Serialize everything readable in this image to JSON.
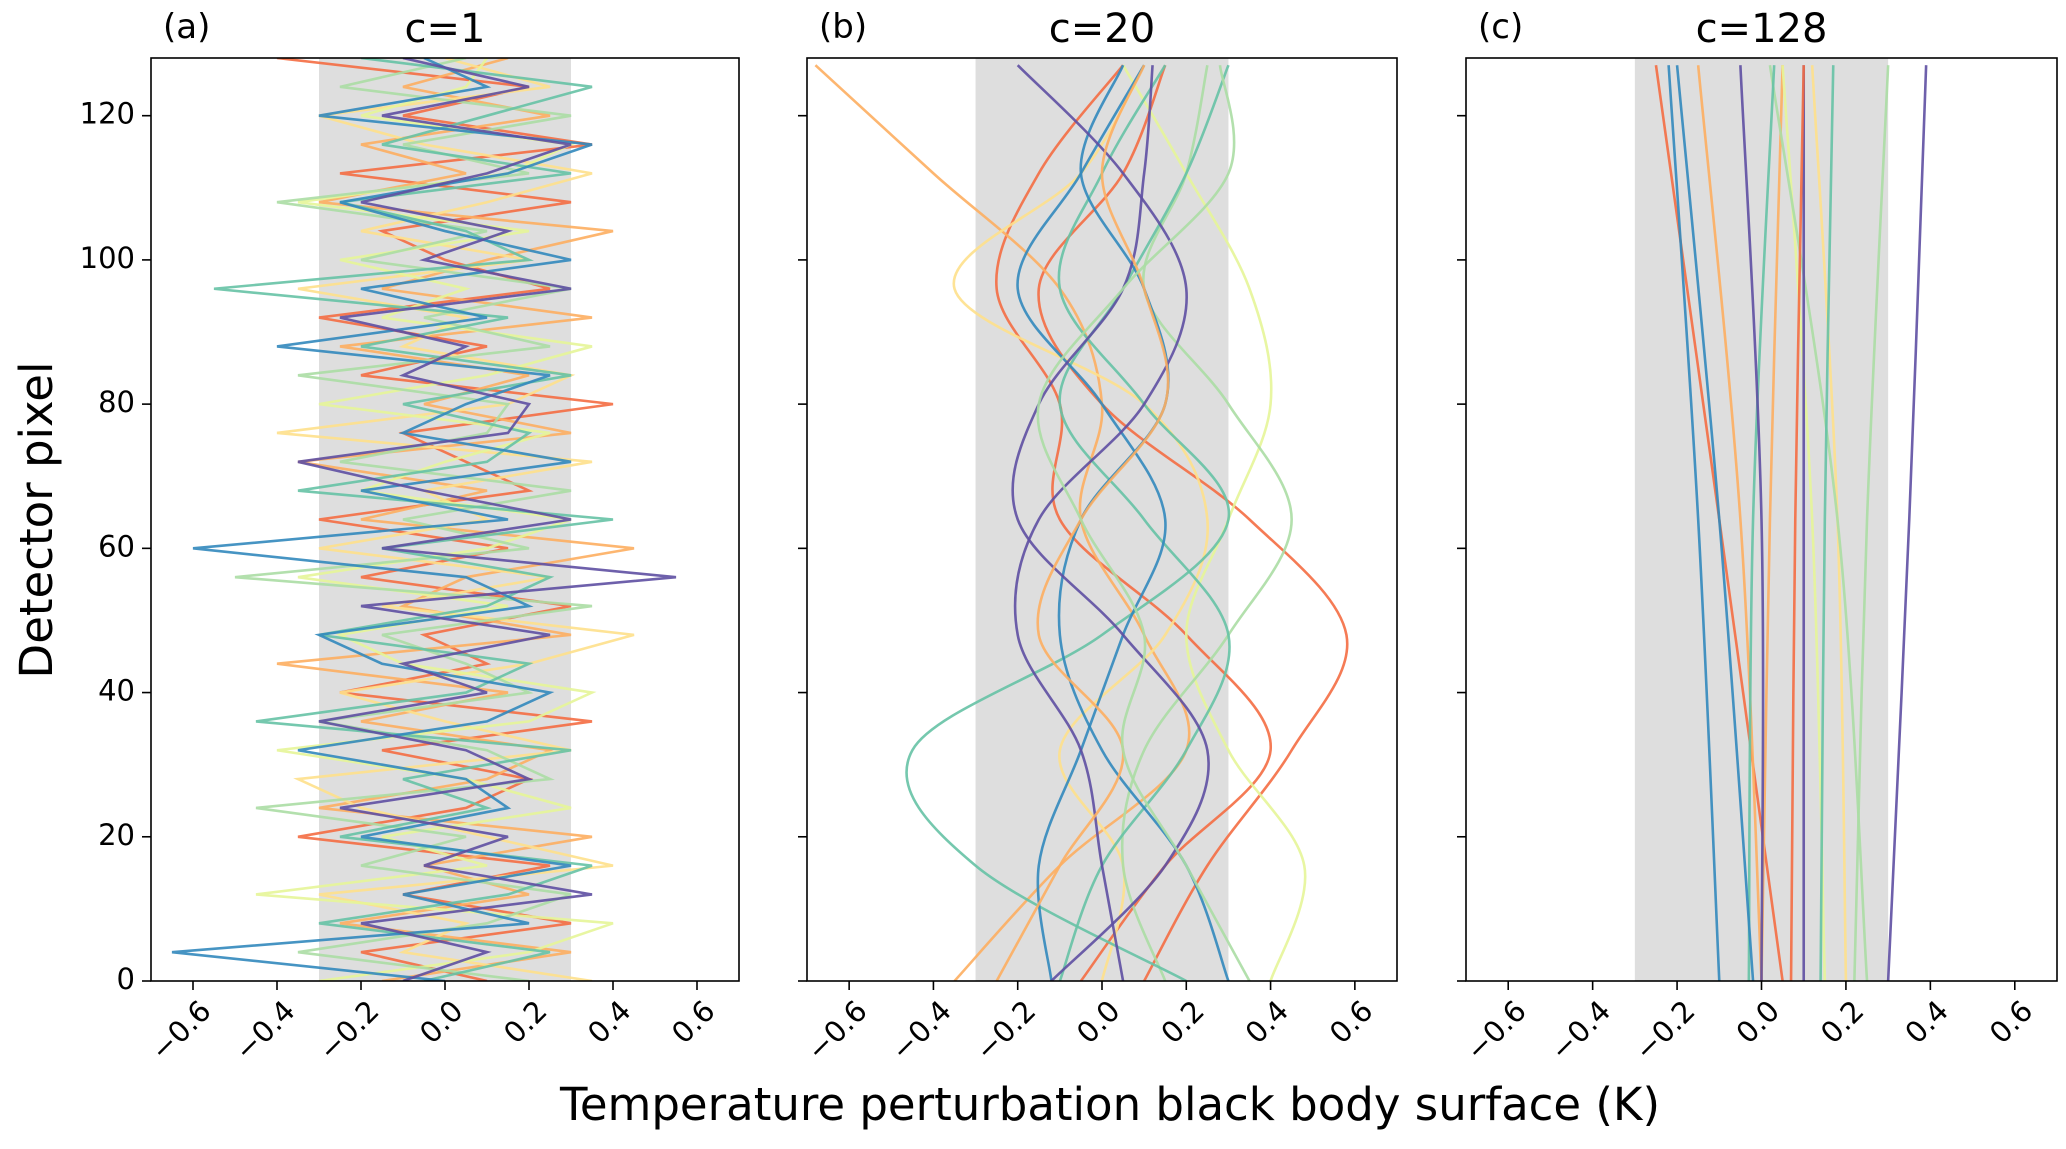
{
  "chart_data": [
    {
      "type": "line",
      "label": "(a)",
      "title": "c=1",
      "ylabel": "Detector pixel",
      "xlabel": "Temperature perturbation black body surface (K)",
      "xlim": [
        -0.7,
        0.7
      ],
      "xticks": [
        {
          "value": -0.6,
          "label": "−0.6"
        },
        {
          "value": -0.4,
          "label": "−0.4"
        },
        {
          "value": -0.2,
          "label": "−0.2"
        },
        {
          "value": 0,
          "label": "0.0"
        },
        0.2,
        0.4,
        0.6
      ],
      "ylim": [
        0,
        128
      ],
      "yticks": [
        0,
        20,
        40,
        60,
        80,
        100,
        120
      ],
      "show_ytick_labels": true,
      "shade_x": [
        -0.3,
        0.3
      ],
      "shade_color": "#dedede",
      "y": [
        0,
        4,
        8,
        12,
        16,
        20,
        24,
        28,
        32,
        36,
        40,
        44,
        48,
        52,
        56,
        60,
        64,
        68,
        72,
        76,
        80,
        84,
        88,
        92,
        96,
        100,
        104,
        108,
        112,
        116,
        120,
        124,
        128
      ],
      "series": [
        {
          "color": "#f46d43",
          "values": [
            0.1,
            -0.2,
            0.3,
            -0.1,
            0.25,
            -0.35,
            0.05,
            0.2,
            -0.15,
            0.35,
            -0.25,
            0.1,
            -0.05,
            0.3,
            -0.2,
            0.15,
            -0.3,
            0.2,
            0.05,
            -0.1,
            0.4,
            -0.2,
            0.1,
            -0.3,
            0.25,
            0.0,
            -0.15,
            0.3,
            -0.25,
            0.35,
            -0.1,
            0.2,
            -0.4
          ]
        },
        {
          "color": "#fdae61",
          "values": [
            -0.15,
            0.3,
            -0.25,
            0.2,
            -0.05,
            0.35,
            -0.3,
            0.1,
            0.25,
            -0.2,
            0.15,
            -0.4,
            0.3,
            -0.1,
            0.05,
            0.45,
            -0.2,
            0.1,
            -0.35,
            0.3,
            -0.05,
            0.2,
            -0.25,
            0.35,
            -0.15,
            0.1,
            0.4,
            -0.3,
            0.05,
            -0.2,
            0.25,
            -0.1,
            0.15
          ]
        },
        {
          "color": "#fee08b",
          "values": [
            0.35,
            -0.1,
            0.05,
            -0.3,
            0.4,
            0.1,
            -0.2,
            -0.35,
            0.3,
            0.0,
            -0.25,
            0.2,
            0.45,
            -0.15,
            0.25,
            -0.3,
            0.1,
            -0.05,
            0.35,
            -0.4,
            0.15,
            0.3,
            -0.1,
            0.05,
            -0.35,
            0.2,
            -0.2,
            0.1,
            0.35,
            -0.05,
            -0.3,
            0.25,
            0.0
          ]
        },
        {
          "color": "#e6f598",
          "values": [
            -0.3,
            0.2,
            0.4,
            -0.45,
            0.1,
            -0.15,
            0.3,
            0.05,
            -0.4,
            0.2,
            0.35,
            -0.1,
            -0.25,
            0.15,
            -0.35,
            0.1,
            0.3,
            -0.2,
            0.0,
            0.25,
            -0.3,
            0.1,
            0.35,
            -0.15,
            0.05,
            -0.25,
            0.2,
            -0.35,
            0.15,
            0.3,
            -0.2,
            0.05,
            0.1
          ]
        },
        {
          "color": "#abdda4",
          "values": [
            0.2,
            -0.35,
            0.1,
            0.3,
            -0.2,
            0.05,
            -0.45,
            0.25,
            0.1,
            -0.3,
            0.2,
            0.05,
            -0.15,
            0.35,
            -0.5,
            0.2,
            -0.1,
            0.3,
            -0.25,
            0.1,
            0.15,
            -0.35,
            0.25,
            -0.05,
            0.3,
            -0.2,
            0.1,
            -0.4,
            0.2,
            -0.1,
            0.3,
            -0.25,
            0.05
          ]
        },
        {
          "color": "#66c2a5",
          "values": [
            -0.05,
            0.25,
            -0.3,
            0.15,
            0.35,
            -0.25,
            0.1,
            -0.1,
            0.3,
            -0.45,
            0.05,
            0.2,
            -0.3,
            0.1,
            0.25,
            -0.15,
            0.4,
            -0.35,
            0.1,
            0.2,
            -0.1,
            0.3,
            -0.2,
            0.15,
            -0.55,
            0.2,
            0.05,
            -0.25,
            0.3,
            -0.15,
            0.1,
            0.35,
            -0.2
          ]
        },
        {
          "color": "#3288bd",
          "values": [
            0.0,
            -0.65,
            0.2,
            -0.1,
            0.3,
            -0.2,
            0.15,
            0.05,
            -0.35,
            0.1,
            0.25,
            -0.15,
            -0.3,
            0.2,
            0.05,
            -0.6,
            0.15,
            -0.2,
            0.3,
            -0.1,
            0.05,
            0.25,
            -0.4,
            0.1,
            -0.2,
            0.3,
            0.0,
            -0.25,
            0.15,
            0.35,
            -0.3,
            0.1,
            -0.05
          ]
        },
        {
          "color": "#5e4fa2",
          "values": [
            -0.1,
            0.1,
            -0.2,
            0.35,
            -0.05,
            0.15,
            -0.25,
            0.2,
            0.05,
            -0.3,
            0.1,
            -0.1,
            0.25,
            -0.2,
            0.55,
            -0.15,
            0.3,
            -0.05,
            -0.35,
            0.15,
            0.2,
            -0.1,
            0.05,
            -0.25,
            0.3,
            -0.05,
            0.15,
            -0.2,
            0.1,
            0.3,
            -0.15,
            0.2,
            -0.1
          ]
        }
      ]
    },
    {
      "type": "line",
      "label": "(b)",
      "title": "c=20",
      "xlim": [
        -0.7,
        0.7
      ],
      "xticks": [
        {
          "value": -0.6,
          "label": "−0.6"
        },
        {
          "value": -0.4,
          "label": "−0.4"
        },
        {
          "value": -0.2,
          "label": "−0.2"
        },
        {
          "value": 0,
          "label": "0.0"
        },
        0.2,
        0.4,
        0.6
      ],
      "ylim": [
        0,
        128
      ],
      "yticks": [
        0,
        20,
        40,
        60,
        80,
        100,
        120
      ],
      "show_ytick_labels": false,
      "shade_x": [
        -0.3,
        0.3
      ],
      "shade_color": "#dedede",
      "y": [
        0,
        16,
        32,
        48,
        64,
        80,
        96,
        112,
        127
      ],
      "series": [
        {
          "color": "#f46d43",
          "values": [
            0.1,
            0.25,
            0.45,
            0.58,
            0.35,
            0.0,
            -0.15,
            0.05,
            0.15
          ]
        },
        {
          "color": "#f46d43",
          "values": [
            -0.05,
            0.15,
            0.4,
            0.2,
            -0.1,
            -0.1,
            -0.25,
            -0.15,
            0.05
          ]
        },
        {
          "color": "#fdae61",
          "values": [
            -0.35,
            -0.1,
            0.2,
            0.1,
            -0.05,
            0.0,
            -0.1,
            -0.4,
            -0.68
          ]
        },
        {
          "color": "#fee08b",
          "values": [
            0.0,
            0.05,
            -0.1,
            0.15,
            0.25,
            0.1,
            -0.35,
            -0.05,
            0.1
          ]
        },
        {
          "color": "#e6f598",
          "values": [
            0.4,
            0.48,
            0.3,
            0.2,
            0.3,
            0.4,
            0.35,
            0.2,
            0.05
          ]
        },
        {
          "color": "#abdda4",
          "values": [
            0.15,
            0.05,
            0.1,
            0.3,
            0.45,
            0.3,
            0.1,
            0.2,
            0.25
          ]
        },
        {
          "color": "#66c2a5",
          "values": [
            0.2,
            -0.3,
            -0.45,
            0.0,
            0.3,
            0.1,
            -0.1,
            0.0,
            0.15
          ]
        },
        {
          "color": "#66c2a5",
          "values": [
            -0.1,
            0.0,
            0.2,
            0.3,
            0.1,
            -0.1,
            0.05,
            0.2,
            0.3
          ]
        },
        {
          "color": "#3288bd",
          "values": [
            -0.12,
            -0.15,
            -0.05,
            0.05,
            0.15,
            0.0,
            -0.2,
            -0.05,
            0.1
          ]
        },
        {
          "color": "#3288bd",
          "values": [
            0.3,
            0.2,
            0.0,
            -0.1,
            -0.05,
            0.15,
            0.1,
            -0.05,
            0.05
          ]
        },
        {
          "color": "#5e4fa2",
          "values": [
            -0.12,
            0.15,
            0.25,
            0.05,
            -0.2,
            -0.15,
            0.05,
            0.1,
            0.12
          ]
        },
        {
          "color": "#5e4fa2",
          "values": [
            0.05,
            0.0,
            -0.05,
            -0.2,
            -0.15,
            0.1,
            0.2,
            0.05,
            -0.2
          ]
        },
        {
          "color": "#fdae61",
          "values": [
            -0.25,
            -0.1,
            0.05,
            -0.15,
            -0.05,
            0.15,
            0.1,
            0.0,
            0.1
          ]
        },
        {
          "color": "#abdda4",
          "values": [
            0.35,
            0.2,
            0.05,
            0.1,
            -0.05,
            -0.15,
            0.05,
            0.3,
            0.28
          ]
        }
      ]
    },
    {
      "type": "line",
      "label": "(c)",
      "title": "c=128",
      "xlim": [
        -0.7,
        0.7
      ],
      "xticks": [
        {
          "value": -0.6,
          "label": "−0.6"
        },
        {
          "value": -0.4,
          "label": "−0.4"
        },
        {
          "value": -0.2,
          "label": "−0.2"
        },
        {
          "value": 0,
          "label": "0.0"
        },
        0.2,
        0.4,
        0.6
      ],
      "ylim": [
        0,
        128
      ],
      "yticks": [
        0,
        20,
        40,
        60,
        80,
        100,
        120
      ],
      "show_ytick_labels": false,
      "shade_x": [
        -0.3,
        0.3
      ],
      "shade_color": "#dedede",
      "y": [
        0,
        64,
        127
      ],
      "series": [
        {
          "color": "#f46d43",
          "values": [
            0.05,
            -0.1,
            -0.25
          ]
        },
        {
          "color": "#fdae61",
          "values": [
            0.0,
            -0.05,
            -0.15
          ]
        },
        {
          "color": "#fdae61",
          "values": [
            0.0,
            0.02,
            0.05
          ]
        },
        {
          "color": "#fee08b",
          "values": [
            0.2,
            0.18,
            0.12
          ]
        },
        {
          "color": "#e6f598",
          "values": [
            0.15,
            0.12,
            0.05
          ]
        },
        {
          "color": "#abdda4",
          "values": [
            0.22,
            0.25,
            0.3
          ]
        },
        {
          "color": "#abdda4",
          "values": [
            0.25,
            0.18,
            0.02
          ]
        },
        {
          "color": "#66c2a5",
          "values": [
            -0.03,
            -0.02,
            0.03
          ]
        },
        {
          "color": "#66c2a5",
          "values": [
            0.14,
            0.15,
            0.17
          ]
        },
        {
          "color": "#3288bd",
          "values": [
            -0.1,
            -0.15,
            -0.22
          ]
        },
        {
          "color": "#3288bd",
          "values": [
            -0.02,
            -0.1,
            -0.2
          ]
        },
        {
          "color": "#5e4fa2",
          "values": [
            0.1,
            0.1,
            0.1
          ]
        },
        {
          "color": "#5e4fa2",
          "values": [
            0.3,
            0.35,
            0.39
          ]
        },
        {
          "color": "#5e4fa2",
          "values": [
            0.0,
            0.0,
            -0.05
          ]
        },
        {
          "color": "#f46d43",
          "values": [
            0.07,
            0.08,
            0.1
          ]
        }
      ]
    }
  ]
}
